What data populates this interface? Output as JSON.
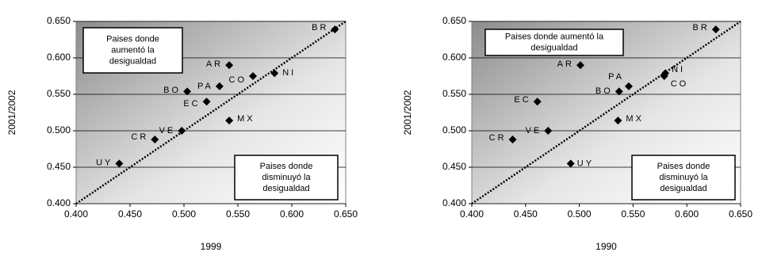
{
  "chart_data": [
    {
      "type": "scatter",
      "x_label": "1999",
      "y_label": "2001/2002",
      "xlim": [
        0.4,
        0.65
      ],
      "ylim": [
        0.4,
        0.65
      ],
      "xticks": [
        {
          "value": 0.4,
          "label": "0.400"
        },
        {
          "value": 0.45,
          "label": "0.450"
        },
        {
          "value": 0.5,
          "label": "0.500"
        },
        {
          "value": 0.55,
          "label": "0.550"
        },
        {
          "value": 0.6,
          "label": "0.600"
        },
        {
          "value": 0.65,
          "label": "0.650"
        }
      ],
      "yticks": [
        {
          "value": 0.4,
          "label": "0.400"
        },
        {
          "value": 0.45,
          "label": "0.450"
        },
        {
          "value": 0.5,
          "label": "0.500"
        },
        {
          "value": 0.55,
          "label": "0.550"
        },
        {
          "value": 0.6,
          "label": "0.600"
        },
        {
          "value": 0.65,
          "label": "0.650"
        }
      ],
      "grid": true,
      "color": "#000000",
      "labels": [
        "BR",
        "AR",
        "CO",
        "NI",
        "PA",
        "BO",
        "EC",
        "MX",
        "VE",
        "CR",
        "UY"
      ],
      "x": [
        0.64,
        0.542,
        0.564,
        0.584,
        0.533,
        0.503,
        0.521,
        0.542,
        0.498,
        0.473,
        0.44
      ],
      "values": [
        0.639,
        0.59,
        0.575,
        0.579,
        0.561,
        0.554,
        0.54,
        0.514,
        0.5,
        0.488,
        0.455
      ],
      "annotations": [
        {
          "lines": [
            "Paises donde",
            "aumentó la",
            "desigualdad"
          ]
        },
        {
          "lines": [
            "Paises donde",
            "disminuyó la",
            "desigualdad"
          ]
        }
      ]
    },
    {
      "type": "scatter",
      "x_label": "1990",
      "y_label": "2001/2002",
      "xlim": [
        0.4,
        0.65
      ],
      "ylim": [
        0.4,
        0.65
      ],
      "xticks": [
        {
          "value": 0.4,
          "label": "0.400"
        },
        {
          "value": 0.45,
          "label": "0.450"
        },
        {
          "value": 0.5,
          "label": "0.500"
        },
        {
          "value": 0.55,
          "label": "0.550"
        },
        {
          "value": 0.6,
          "label": "0.600"
        },
        {
          "value": 0.65,
          "label": "0.650"
        }
      ],
      "yticks": [
        {
          "value": 0.4,
          "label": "0.400"
        },
        {
          "value": 0.45,
          "label": "0.450"
        },
        {
          "value": 0.5,
          "label": "0.500"
        },
        {
          "value": 0.55,
          "label": "0.550"
        },
        {
          "value": 0.6,
          "label": "0.600"
        },
        {
          "value": 0.65,
          "label": "0.650"
        }
      ],
      "grid": true,
      "color": "#000000",
      "labels": [
        "BR",
        "AR",
        "NI",
        "CO",
        "PA",
        "BO",
        "EC",
        "MX",
        "VE",
        "CR",
        "UY"
      ],
      "x": [
        0.627,
        0.501,
        0.58,
        0.579,
        0.546,
        0.537,
        0.461,
        0.536,
        0.471,
        0.438,
        0.492
      ],
      "values": [
        0.639,
        0.59,
        0.579,
        0.575,
        0.561,
        0.554,
        0.54,
        0.514,
        0.5,
        0.488,
        0.455
      ],
      "annotations": [
        {
          "lines": [
            "Paises donde aumentó la",
            "desigualdad"
          ]
        },
        {
          "lines": [
            "Paises donde",
            "disminuyó la",
            "desigualdad"
          ]
        }
      ]
    }
  ]
}
